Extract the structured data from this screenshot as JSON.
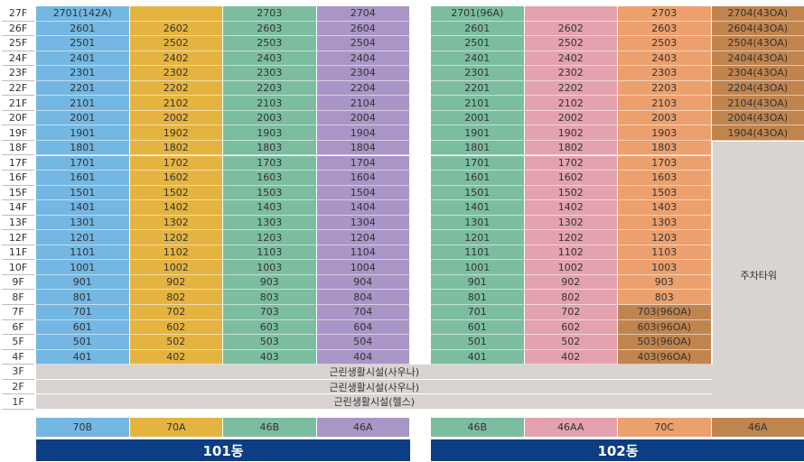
{
  "floors": [
    "27F",
    "26F",
    "25F",
    "24F",
    "23F",
    "22F",
    "21F",
    "20F",
    "19F",
    "18F",
    "17F",
    "16F",
    "15F",
    "14F",
    "13F",
    "12F",
    "11F",
    "10F",
    "9F",
    "8F",
    "7F",
    "6F",
    "5F",
    "4F",
    "3F",
    "2F",
    "1F"
  ],
  "colors": {
    "blue": "#73b7e2",
    "yellow": "#e5b440",
    "green": "#7cbd9f",
    "purple": "#a995c6",
    "pink": "#e3a2ad",
    "orange": "#eba06d",
    "brown": "#c0844f",
    "gray": "#d9d4d1",
    "navy": "#0d3d83"
  },
  "buildings": [
    {
      "name": "101동",
      "columns": [
        {
          "type_label": "70B",
          "color": "blue",
          "units": [
            "2701(142A)",
            "2601",
            "2501",
            "2401",
            "2301",
            "2201",
            "2101",
            "2001",
            "1901",
            "1801",
            "1701",
            "1601",
            "1501",
            "1401",
            "1301",
            "1201",
            "1101",
            "1001",
            "901",
            "801",
            "701",
            "601",
            "501",
            "401"
          ],
          "unit_colors": {}
        },
        {
          "type_label": "70A",
          "color": "yellow",
          "units": [
            "",
            "2602",
            "2502",
            "2402",
            "2302",
            "2202",
            "2102",
            "2002",
            "1902",
            "1802",
            "1702",
            "1602",
            "1502",
            "1402",
            "1302",
            "1202",
            "1102",
            "1002",
            "902",
            "802",
            "702",
            "602",
            "502",
            "402"
          ],
          "unit_colors": {}
        },
        {
          "type_label": "46B",
          "color": "green",
          "units": [
            "2703",
            "2603",
            "2503",
            "2403",
            "2303",
            "2203",
            "2103",
            "2003",
            "1903",
            "1803",
            "1703",
            "1603",
            "1503",
            "1403",
            "1303",
            "1203",
            "1103",
            "1003",
            "903",
            "803",
            "703",
            "603",
            "503",
            "403"
          ],
          "unit_colors": {}
        },
        {
          "type_label": "46A",
          "color": "purple",
          "units": [
            "2704",
            "2604",
            "2504",
            "2404",
            "2304",
            "2204",
            "2104",
            "2004",
            "1904",
            "1804",
            "1704",
            "1604",
            "1504",
            "1404",
            "1304",
            "1204",
            "1104",
            "1004",
            "904",
            "804",
            "704",
            "604",
            "504",
            "404"
          ],
          "unit_colors": {}
        }
      ]
    },
    {
      "name": "102동",
      "columns": [
        {
          "type_label": "46B",
          "color": "green",
          "units": [
            "2701(96A)",
            "2601",
            "2501",
            "2401",
            "2301",
            "2201",
            "2101",
            "2001",
            "1901",
            "1801",
            "1701",
            "1601",
            "1501",
            "1401",
            "1301",
            "1201",
            "1101",
            "1001",
            "901",
            "801",
            "701",
            "601",
            "501",
            "401"
          ],
          "unit_colors": {}
        },
        {
          "type_label": "46AA",
          "color": "pink",
          "units": [
            "",
            "2602",
            "2502",
            "2402",
            "2302",
            "2202",
            "2102",
            "2002",
            "1902",
            "1802",
            "1702",
            "1602",
            "1502",
            "1402",
            "1302",
            "1202",
            "1102",
            "1002",
            "902",
            "802",
            "702",
            "602",
            "502",
            "402"
          ],
          "unit_colors": {}
        },
        {
          "type_label": "70C",
          "color": "orange",
          "units": [
            "2703",
            "2603",
            "2503",
            "2403",
            "2303",
            "2203",
            "2103",
            "2003",
            "1903",
            "1803",
            "1703",
            "1603",
            "1503",
            "1403",
            "1303",
            "1203",
            "1103",
            "1003",
            "903",
            "803",
            "703(96OA)",
            "603(96OA)",
            "503(96OA)",
            "403(96OA)"
          ],
          "unit_colors": {
            "20": "brown",
            "21": "brown",
            "22": "brown",
            "23": "brown"
          }
        },
        {
          "type_label": "46A",
          "color": "brown",
          "units": [
            "2704(43OA)",
            "2604(43OA)",
            "2504(43OA)",
            "2404(43OA)",
            "2304(43OA)",
            "2204(43OA)",
            "2104(43OA)",
            "2004(43OA)",
            "1904(43OA)"
          ],
          "unit_colors": {}
        }
      ]
    }
  ],
  "parking_tower": "주차타워",
  "facilities": [
    {
      "floor": "3F",
      "label": "근린생활시설(사우나)"
    },
    {
      "floor": "2F",
      "label": "근린생활시설(사우나)"
    },
    {
      "floor": "1F",
      "label": "근린생활시설(헬스)"
    }
  ]
}
